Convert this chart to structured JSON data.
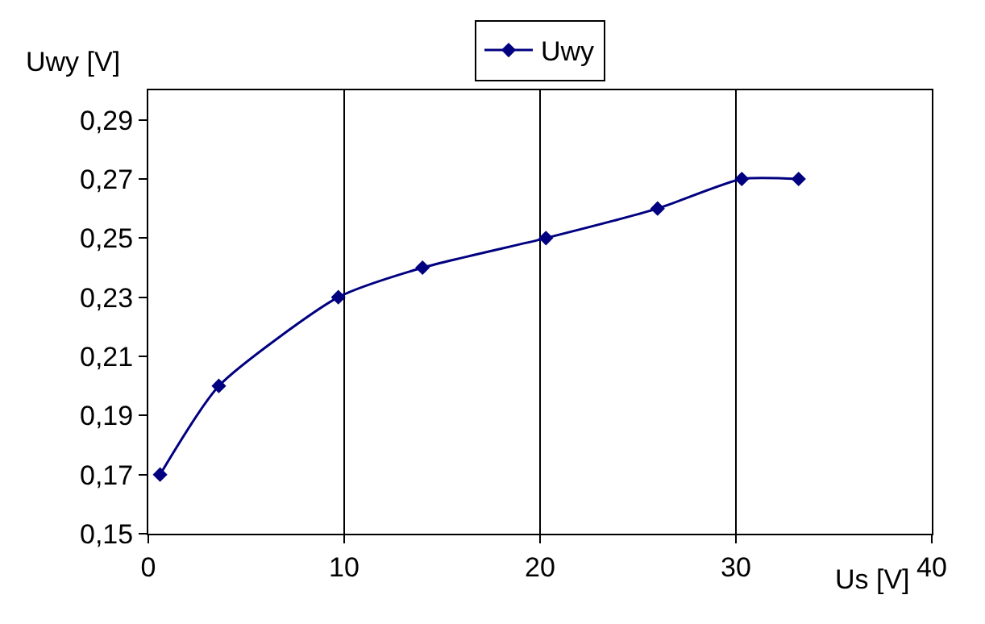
{
  "chart_data": {
    "type": "line",
    "xlabel": "Us [V]",
    "ylabel": "Uwy [V]",
    "series": [
      {
        "name": "Uwy",
        "color": "#000080",
        "x": [
          0.6,
          3.6,
          9.7,
          14,
          20.3,
          26,
          30.3,
          33.2
        ],
        "values": [
          0.17,
          0.2,
          0.23,
          0.24,
          0.25,
          0.26,
          0.27,
          0.27
        ]
      }
    ],
    "xlim": [
      0,
      40
    ],
    "xticks": [
      0,
      10,
      20,
      30,
      40
    ],
    "ylim": [
      0.15,
      0.3
    ],
    "yticks": [
      {
        "value": 0.15,
        "label": "0,15"
      },
      {
        "value": 0.17,
        "label": "0,17"
      },
      {
        "value": 0.19,
        "label": "0,19"
      },
      {
        "value": 0.21,
        "label": "0,21"
      },
      {
        "value": 0.23,
        "label": "0,23"
      },
      {
        "value": 0.25,
        "label": "0,25"
      },
      {
        "value": 0.27,
        "label": "0,27"
      },
      {
        "value": 0.29,
        "label": "0,29"
      }
    ],
    "grid": "x",
    "legend": "top",
    "marker": "diamond",
    "line_style": "solid"
  }
}
